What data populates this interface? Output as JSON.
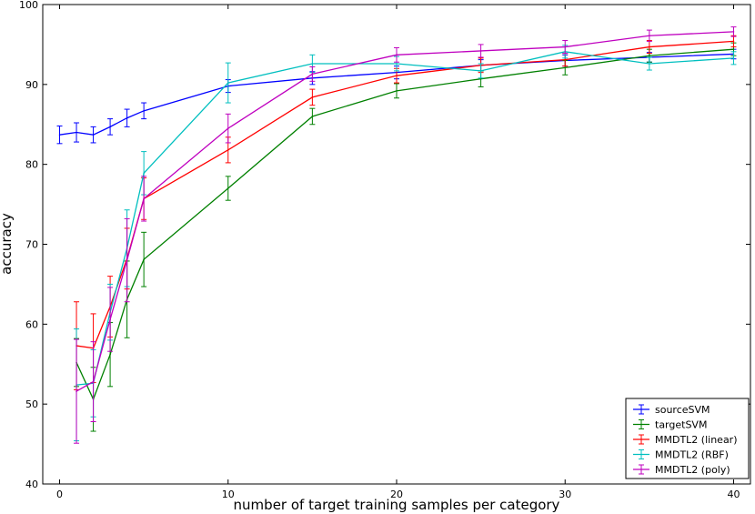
{
  "chart_data": {
    "type": "line",
    "title": "",
    "xlabel": "number of target training samples per category",
    "ylabel": "accuracy",
    "xlim": [
      -1,
      41
    ],
    "ylim": [
      40,
      100
    ],
    "xticks": [
      0,
      10,
      20,
      30,
      40
    ],
    "yticks": [
      40,
      50,
      60,
      70,
      80,
      90,
      100
    ],
    "grid": false,
    "legend_position": "bottom-right",
    "series": [
      {
        "name": "sourceSVM",
        "color": "#0000ff",
        "x": [
          0,
          1,
          2,
          3,
          4,
          5,
          10,
          15,
          20,
          25,
          30,
          35,
          40
        ],
        "y": [
          83.7,
          84.0,
          83.7,
          84.7,
          85.8,
          86.7,
          89.8,
          90.8,
          91.5,
          92.4,
          93.0,
          93.4,
          93.8
        ],
        "err": [
          1.1,
          1.2,
          1.0,
          1.0,
          1.1,
          1.0,
          0.8,
          0.8,
          0.8,
          0.7,
          0.7,
          0.6,
          0.6
        ]
      },
      {
        "name": "targetSVM",
        "color": "#008000",
        "x": [
          1,
          2,
          3,
          4,
          5,
          10,
          15,
          20,
          25,
          30,
          35,
          40
        ],
        "y": [
          55.2,
          50.6,
          56.2,
          63.1,
          68.1,
          77.0,
          86.0,
          89.2,
          90.7,
          92.1,
          93.6,
          94.4
        ],
        "err": [
          3.0,
          4.0,
          4.0,
          4.8,
          3.4,
          1.5,
          1.0,
          0.9,
          1.0,
          0.9,
          0.8,
          0.8
        ]
      },
      {
        "name": "MMDTL2 (linear)",
        "color": "#ff0000",
        "x": [
          1,
          2,
          3,
          4,
          5,
          10,
          15,
          20,
          25,
          30,
          35,
          40
        ],
        "y": [
          57.3,
          57.0,
          62.2,
          68.2,
          75.7,
          81.8,
          88.4,
          91.1,
          92.4,
          93.1,
          94.7,
          95.4
        ],
        "err": [
          5.5,
          4.3,
          3.8,
          3.8,
          2.6,
          1.6,
          1.0,
          0.9,
          0.9,
          0.8,
          0.8,
          0.7
        ]
      },
      {
        "name": "MMDTL2 (RBF)",
        "color": "#00bfbf",
        "x": [
          1,
          2,
          3,
          4,
          5,
          10,
          15,
          20,
          25,
          30,
          35,
          40
        ],
        "y": [
          52.4,
          52.6,
          61.5,
          69.5,
          78.9,
          90.2,
          92.6,
          92.6,
          91.7,
          94.1,
          92.6,
          93.3
        ],
        "err": [
          7.0,
          4.2,
          3.5,
          4.8,
          2.7,
          2.5,
          1.1,
          0.9,
          0.9,
          0.8,
          0.8,
          0.8
        ]
      },
      {
        "name": "MMDTL2 (poly)",
        "color": "#bf00bf",
        "x": [
          1,
          2,
          3,
          4,
          5,
          10,
          15,
          20,
          25,
          30,
          35,
          40
        ],
        "y": [
          51.6,
          52.8,
          60.6,
          68.0,
          75.7,
          84.5,
          91.3,
          93.7,
          94.2,
          94.7,
          96.1,
          96.6
        ],
        "err": [
          6.5,
          5.0,
          4.0,
          5.2,
          2.8,
          1.8,
          0.9,
          0.9,
          0.8,
          0.8,
          0.7,
          0.6
        ]
      }
    ]
  }
}
